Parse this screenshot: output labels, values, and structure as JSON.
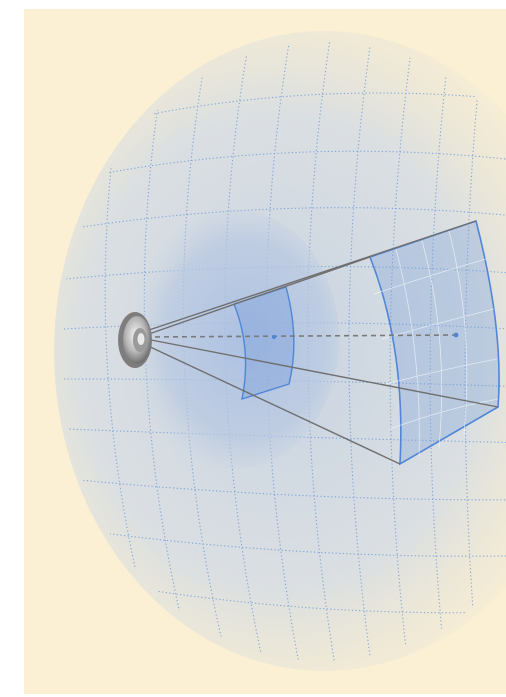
{
  "colors": {
    "background": "#fbf0d4",
    "sphere_shading": "#c9d5e4",
    "grid": "#5b8fd6",
    "frustum_fill": "#7fa2db",
    "frustum_edge": "#4f86d8",
    "rays": "#6f6f6f",
    "axis": "#7a7a7a",
    "speaker": "#8c8c8c"
  },
  "icons": {
    "source": "speaker-icon"
  },
  "elements": [
    {
      "name": "outer-sphere",
      "kind": "sphere"
    },
    {
      "name": "inner-sphere",
      "kind": "sphere"
    },
    {
      "name": "near-patch",
      "kind": "spherical-patch"
    },
    {
      "name": "far-patch",
      "kind": "spherical-patch"
    },
    {
      "name": "center-axis",
      "kind": "dashed-line"
    }
  ]
}
